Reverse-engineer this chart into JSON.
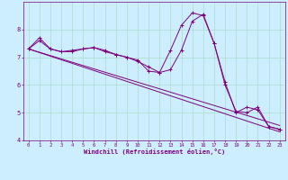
{
  "xlabel": "Windchill (Refroidissement éolien,°C)",
  "x": [
    0,
    1,
    2,
    3,
    4,
    5,
    6,
    7,
    8,
    9,
    10,
    11,
    12,
    13,
    14,
    15,
    16,
    17,
    18,
    19,
    20,
    21,
    22,
    23
  ],
  "line1": [
    7.3,
    7.6,
    7.3,
    7.2,
    7.2,
    7.3,
    7.35,
    7.2,
    7.1,
    7.0,
    6.85,
    6.65,
    6.45,
    7.25,
    8.15,
    8.6,
    8.5,
    7.5,
    6.0,
    5.05,
    5.0,
    5.2,
    4.5,
    4.4
  ],
  "line2": [
    7.3,
    7.7,
    7.3,
    7.2,
    7.25,
    7.3,
    7.35,
    7.25,
    7.1,
    7.0,
    6.9,
    6.5,
    6.45,
    6.55,
    7.25,
    8.3,
    8.55,
    7.5,
    6.1,
    5.0,
    5.2,
    5.1,
    4.5,
    4.4
  ],
  "line_reg1": [
    7.3,
    7.17,
    7.04,
    6.91,
    6.78,
    6.65,
    6.52,
    6.39,
    6.26,
    6.13,
    6.0,
    5.87,
    5.74,
    5.61,
    5.48,
    5.35,
    5.22,
    5.09,
    4.96,
    4.83,
    4.7,
    4.57,
    4.44,
    4.31
  ],
  "line_reg2": [
    7.3,
    7.18,
    7.06,
    6.94,
    6.82,
    6.7,
    6.58,
    6.46,
    6.34,
    6.22,
    6.1,
    5.98,
    5.86,
    5.74,
    5.62,
    5.5,
    5.38,
    5.26,
    5.14,
    5.02,
    4.9,
    4.78,
    4.66,
    4.54
  ],
  "line_color": "#800080",
  "bg_color": "#cceeff",
  "grid_color": "#aaddcc",
  "text_color": "#800080",
  "ylim": [
    4.0,
    9.0
  ],
  "xlim": [
    -0.5,
    23.5
  ],
  "yticks": [
    4,
    5,
    6,
    7,
    8
  ],
  "xticks": [
    0,
    1,
    2,
    3,
    4,
    5,
    6,
    7,
    8,
    9,
    10,
    11,
    12,
    13,
    14,
    15,
    16,
    17,
    18,
    19,
    20,
    21,
    22,
    23
  ]
}
